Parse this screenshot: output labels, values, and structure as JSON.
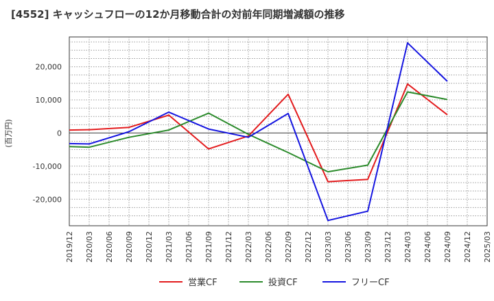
{
  "chart_data": {
    "type": "line",
    "title": "[4552]  キャッシュフローの12か月移動合計の対前年同期増減額の推移",
    "ylabel": "(百万円)",
    "xlabel": "",
    "x": [
      "2019/12",
      "2020/03",
      "2020/06",
      "2020/09",
      "2020/12",
      "2021/03",
      "2021/06",
      "2021/09",
      "2021/12",
      "2022/03",
      "2022/06",
      "2022/09",
      "2022/12",
      "2023/03",
      "2023/06",
      "2023/09",
      "2023/12",
      "2024/03",
      "2024/06",
      "2024/09",
      "2024/12",
      "2025/03"
    ],
    "ylim": [
      -28000,
      29000
    ],
    "yticks": [
      -20000,
      -10000,
      0,
      10000,
      20000
    ],
    "ytick_labels": [
      "-20,000",
      "-10,000",
      "0",
      "10,000",
      "20,000"
    ],
    "grid": true,
    "legend_position": "bottom",
    "series": [
      {
        "name": "営業CF",
        "color": "#e31a1c",
        "values": [
          900,
          1000,
          null,
          1700,
          null,
          5400,
          null,
          -4800,
          null,
          -900,
          null,
          11700,
          null,
          -14700,
          null,
          -14000,
          null,
          14800,
          null,
          5500,
          null,
          null
        ]
      },
      {
        "name": "投資CF",
        "color": "#2a8a2a",
        "values": [
          -4100,
          -4300,
          null,
          -1300,
          null,
          900,
          null,
          6000,
          null,
          -400,
          null,
          -5900,
          null,
          -11700,
          null,
          -9700,
          null,
          12400,
          null,
          10100,
          null,
          null
        ]
      },
      {
        "name": "フリーCF",
        "color": "#1414e0",
        "values": [
          -3200,
          -3300,
          null,
          400,
          null,
          6300,
          null,
          1200,
          null,
          -1300,
          null,
          5900,
          null,
          -26400,
          null,
          -23600,
          null,
          27200,
          null,
          15600,
          null,
          null
        ]
      }
    ]
  }
}
